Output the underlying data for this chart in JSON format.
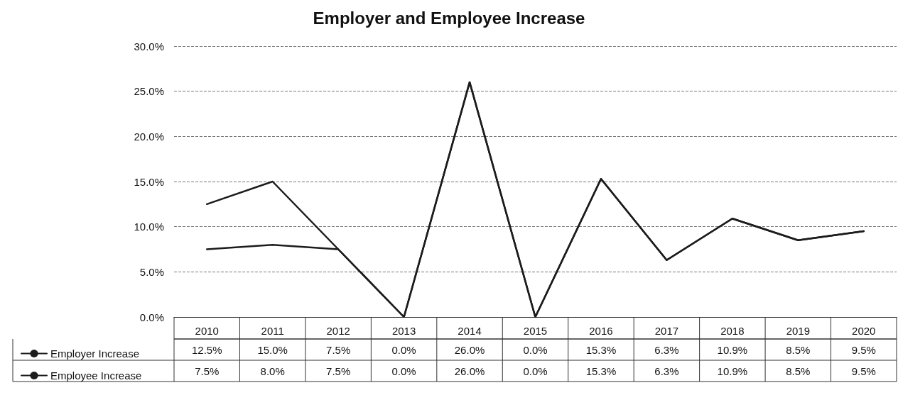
{
  "chart_data": {
    "type": "line",
    "title": "Employer and Employee Increase",
    "categories": [
      "2010",
      "2011",
      "2012",
      "2013",
      "2014",
      "2015",
      "2016",
      "2017",
      "2018",
      "2019",
      "2020"
    ],
    "series": [
      {
        "name": "Employer Increase",
        "color": "#1c1c1c",
        "values": [
          12.5,
          15.0,
          7.5,
          0.0,
          26.0,
          0.0,
          15.3,
          6.3,
          10.9,
          8.5,
          9.5
        ],
        "value_labels": [
          "12.5%",
          "15.0%",
          "7.5%",
          "0.0%",
          "26.0%",
          "0.0%",
          "15.3%",
          "6.3%",
          "10.9%",
          "8.5%",
          "9.5%"
        ]
      },
      {
        "name": "Employee Increase",
        "color": "#1c1c1c",
        "values": [
          7.5,
          8.0,
          7.5,
          0.0,
          26.0,
          0.0,
          15.3,
          6.3,
          10.9,
          8.5,
          9.5
        ],
        "value_labels": [
          "7.5%",
          "8.0%",
          "7.5%",
          "0.0%",
          "26.0%",
          "0.0%",
          "15.3%",
          "6.3%",
          "10.9%",
          "8.5%",
          "9.5%"
        ]
      }
    ],
    "ylim": [
      0,
      30
    ],
    "yticks": [
      {
        "value": 0,
        "label": "0.0%"
      },
      {
        "value": 5,
        "label": "5.0%"
      },
      {
        "value": 10,
        "label": "10.0%"
      },
      {
        "value": 15,
        "label": "15.0%"
      },
      {
        "value": 20,
        "label": "20.0%"
      },
      {
        "value": 25,
        "label": "25.0%"
      },
      {
        "value": 30,
        "label": "30.0%"
      }
    ],
    "grid": "y",
    "legend": "bottom left",
    "marker": "none",
    "line_style": "solid"
  }
}
